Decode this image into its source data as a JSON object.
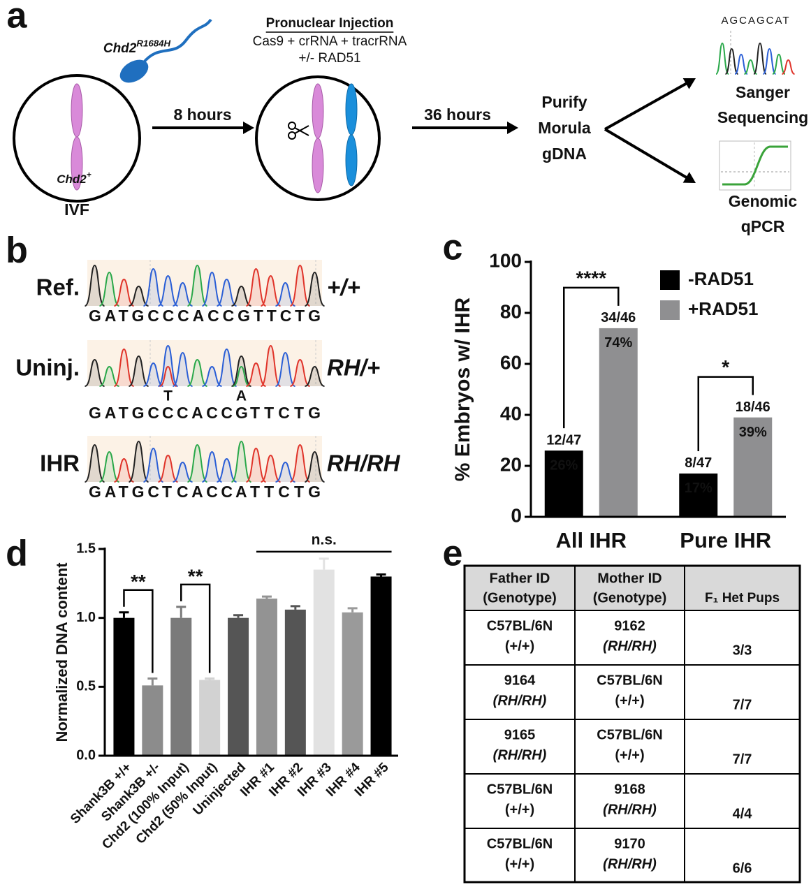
{
  "panel_letters": [
    "a",
    "b",
    "c",
    "d",
    "e"
  ],
  "workflow": {
    "sperm_label": {
      "text": "Chd2",
      "superscript": "R1684H"
    },
    "egg_label": {
      "text": "Chd2",
      "superscript": "+"
    },
    "ivf_label": "IVF",
    "step1_time": "8 hours",
    "injection": {
      "title": "Pronuclear Injection",
      "lines": [
        "Cas9 + crRNA + tracrRNA",
        "+/- RAD51"
      ]
    },
    "step2_time": "36 hours",
    "purify": [
      "Purify",
      "Morula",
      "gDNA"
    ],
    "sanger": {
      "sequence": "AGCAGCAT",
      "label": [
        "Sanger",
        "Sequencing"
      ]
    },
    "qpcr": {
      "label": [
        "Genomic",
        "qPCR"
      ]
    }
  },
  "chromatograms": {
    "mutation_color": "#e8231f",
    "rows": [
      {
        "label": "Ref.",
        "genotype": "+/+",
        "segments": [
          {
            "text": "GATGCCCACCGTTCTG"
          }
        ]
      },
      {
        "label": "Uninj.",
        "genotype": "RH/+",
        "segments": [
          {
            "text": "GATGC"
          },
          {
            "text": "C",
            "variant": "T"
          },
          {
            "text": "CACC"
          },
          {
            "text": "G",
            "variant": "A"
          },
          {
            "text": "TTCTG"
          }
        ]
      },
      {
        "label": "IHR",
        "genotype": "RH/RH",
        "segments": [
          {
            "text": "GATGC"
          },
          {
            "text": "T",
            "mutated": true
          },
          {
            "text": "CACC"
          },
          {
            "text": "A",
            "mutated": true
          },
          {
            "text": "TTCTG"
          }
        ]
      }
    ]
  },
  "chart_data": [
    {
      "type": "bar",
      "ylabel": "% Embryos w/ IHR",
      "categories": [
        "All IHR",
        "Pure IHR"
      ],
      "series": [
        {
          "name": "-RAD51",
          "color": "#000000",
          "values": [
            26,
            17
          ],
          "value_labels": [
            "26%",
            "17%"
          ],
          "count_labels": [
            "12/47",
            "8/47"
          ]
        },
        {
          "name": "+RAD51",
          "color": "#8f8f91",
          "values": [
            74,
            39
          ],
          "value_labels": [
            "74%",
            "39%"
          ],
          "count_labels": [
            "34/46",
            "18/46"
          ]
        }
      ],
      "ylim": [
        0,
        100
      ],
      "yticks": [
        0,
        20,
        40,
        60,
        80,
        100
      ],
      "legend": "upper right",
      "significance": [
        {
          "label": "****",
          "category": 0
        },
        {
          "label": "*",
          "category": 1
        }
      ]
    },
    {
      "type": "bar",
      "ylabel": "Normalized DNA content",
      "categories": [
        "Shank3B +/+",
        "Shank3B +/-",
        "Chd2 (100% Input)",
        "Chd2 (50% Input)",
        "Uninjected",
        "IHR #1",
        "IHR #2",
        "IHR #3",
        "IHR #4",
        "IHR #5"
      ],
      "values": [
        1.0,
        0.51,
        1.0,
        0.55,
        1.0,
        1.14,
        1.06,
        1.35,
        1.04,
        1.3
      ],
      "errors": [
        0.04,
        0.05,
        0.08,
        0.01,
        0.02,
        0.015,
        0.025,
        0.08,
        0.03,
        0.015
      ],
      "colors": [
        "#000000",
        "#8c8c8c",
        "#7a7a7a",
        "#d2d2d2",
        "#555555",
        "#939393",
        "#555555",
        "#e2e2e2",
        "#9a9a9a",
        "#000000"
      ],
      "ylim": [
        0,
        1.5
      ],
      "yticks": [
        {
          "value": 0,
          "label": "0.0"
        },
        0.5,
        {
          "value": 1,
          "label": "1.0"
        },
        1.5
      ],
      "significance": [
        {
          "label": "**",
          "pair": [
            0,
            1
          ]
        },
        {
          "label": "**",
          "pair": [
            2,
            3
          ]
        },
        {
          "label": "n.s.",
          "span": [
            5,
            9
          ]
        }
      ]
    }
  ],
  "table": {
    "header": [
      [
        "Father ID",
        "(Genotype)"
      ],
      [
        "Mother ID",
        "(Genotype)"
      ],
      "F₁ Het Pups"
    ],
    "rows": [
      [
        [
          "C57BL/6N",
          "(+/+)"
        ],
        [
          "9162",
          "(RH/RH)"
        ],
        "3/3"
      ],
      [
        [
          "9164",
          "(RH/RH)"
        ],
        [
          "C57BL/6N",
          "(+/+)"
        ],
        "7/7"
      ],
      [
        [
          "9165",
          "(RH/RH)"
        ],
        [
          "C57BL/6N",
          "(+/+)"
        ],
        "7/7"
      ],
      [
        [
          "C57BL/6N",
          "(+/+)"
        ],
        [
          "9168",
          "(RH/RH)"
        ],
        "4/4"
      ],
      [
        [
          "C57BL/6N",
          "(+/+)"
        ],
        [
          "9170",
          "(RH/RH)"
        ],
        "6/6"
      ]
    ]
  }
}
